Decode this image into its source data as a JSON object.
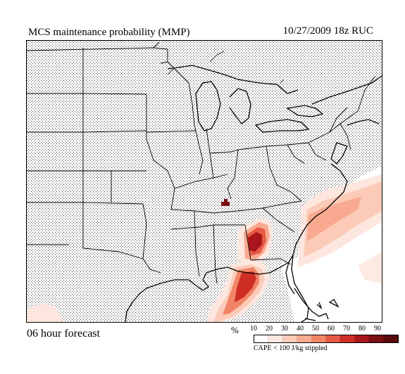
{
  "header": {
    "title": "MCS maintenance probability (MMP)",
    "meta": "10/27/2009  18z  RUC"
  },
  "footer": {
    "forecast": "06 hour forecast"
  },
  "legend": {
    "unit": "%",
    "labels": [
      "10",
      "20",
      "30",
      "40",
      "50",
      "60",
      "70",
      "80",
      "90"
    ],
    "colors": [
      "#ffffff",
      "#fde6de",
      "#fbcbb8",
      "#f8a98f",
      "#f18466",
      "#e65a45",
      "#cf2e25",
      "#a8161b",
      "#7a0f14",
      "#5a0a0e"
    ],
    "note": "CAPE < 100 J/kg stippled"
  },
  "map": {
    "background": "#ffffff",
    "stipple_color": "#555555",
    "border_color": "#000000",
    "region": "Eastern United States"
  }
}
